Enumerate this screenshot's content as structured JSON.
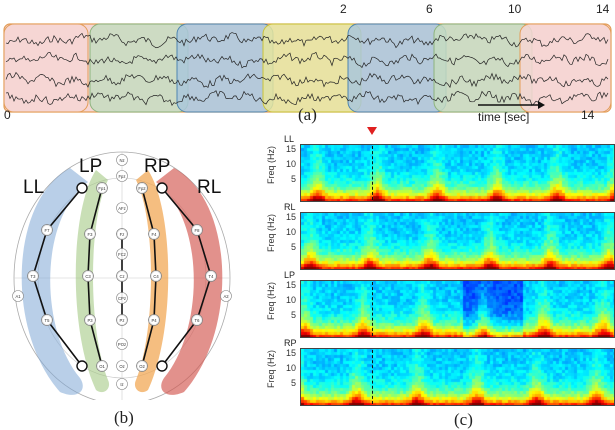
{
  "panel_a": {
    "caption": "(a)",
    "time_axis_label": "time [sec]",
    "tick_top": [
      "2",
      "6",
      "10",
      "14"
    ],
    "tick_bottom_left": "0",
    "tick_bottom_right": "14",
    "window_colors": [
      "#f6d6d4",
      "#c5dcbf",
      "#a9c7db",
      "#e6e59c",
      "#a9c7db",
      "#c5dcbf",
      "#f6d6d4"
    ]
  },
  "panel_b": {
    "caption": "(b)",
    "regions": [
      "LL",
      "LP",
      "RP",
      "RL"
    ],
    "region_colors": {
      "LL": "#7fa8d6",
      "LP": "#9cc47a",
      "RP": "#f1a24a",
      "RL": "#d2564f"
    },
    "electrodes": [
      "Nz",
      "Fpz",
      "AFz",
      "Fz",
      "FCz",
      "Cz",
      "CPz",
      "Pz",
      "POz",
      "Oz",
      "Iz",
      "Fp1",
      "Fp2",
      "F7",
      "F8",
      "F3",
      "F4",
      "T3",
      "T4",
      "C3",
      "C4",
      "T5",
      "T6",
      "P3",
      "P4",
      "O1",
      "O2",
      "A1",
      "A2"
    ]
  },
  "panel_c": {
    "caption": "(c)",
    "marker_color": "#e02020",
    "ylabel": "Freq (Hz)",
    "yticks": [
      "15",
      "10",
      "5"
    ],
    "spectrograms": [
      {
        "name": "LL"
      },
      {
        "name": "RL"
      },
      {
        "name": "LP"
      },
      {
        "name": "RP"
      }
    ]
  }
}
